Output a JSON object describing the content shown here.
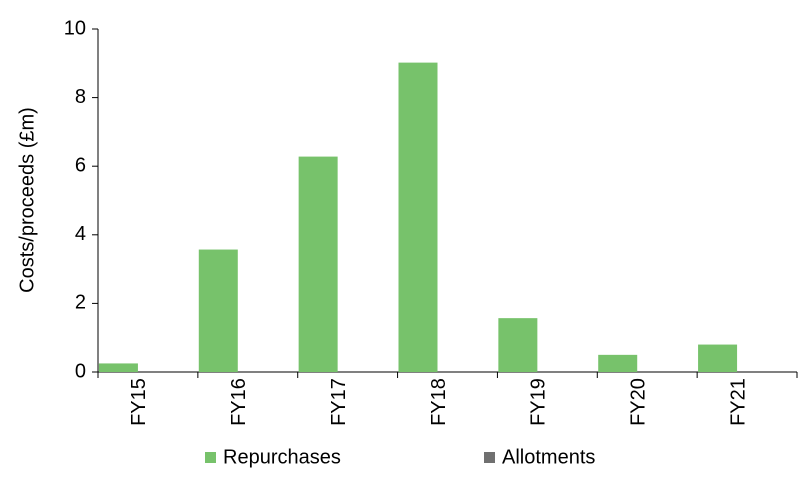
{
  "chart_data": {
    "type": "bar",
    "y_label": "Costs/proceeds (£m)",
    "categories": [
      "FY15",
      "FY16",
      "FY17",
      "FY18",
      "FY19",
      "FY20",
      "FY21"
    ],
    "series": [
      {
        "name": "Repurchases",
        "color": "#77c26b",
        "values": [
          0.25,
          3.57,
          6.28,
          9.02,
          1.57,
          0.5,
          0.8
        ]
      },
      {
        "name": "Allotments",
        "color": "#707070",
        "values": [
          0,
          0,
          0,
          0,
          0,
          0,
          0
        ]
      }
    ],
    "ylim": [
      0,
      10
    ],
    "yticks": [
      0,
      2,
      4,
      6,
      8,
      10
    ],
    "grid": false,
    "legend": "bottom"
  }
}
